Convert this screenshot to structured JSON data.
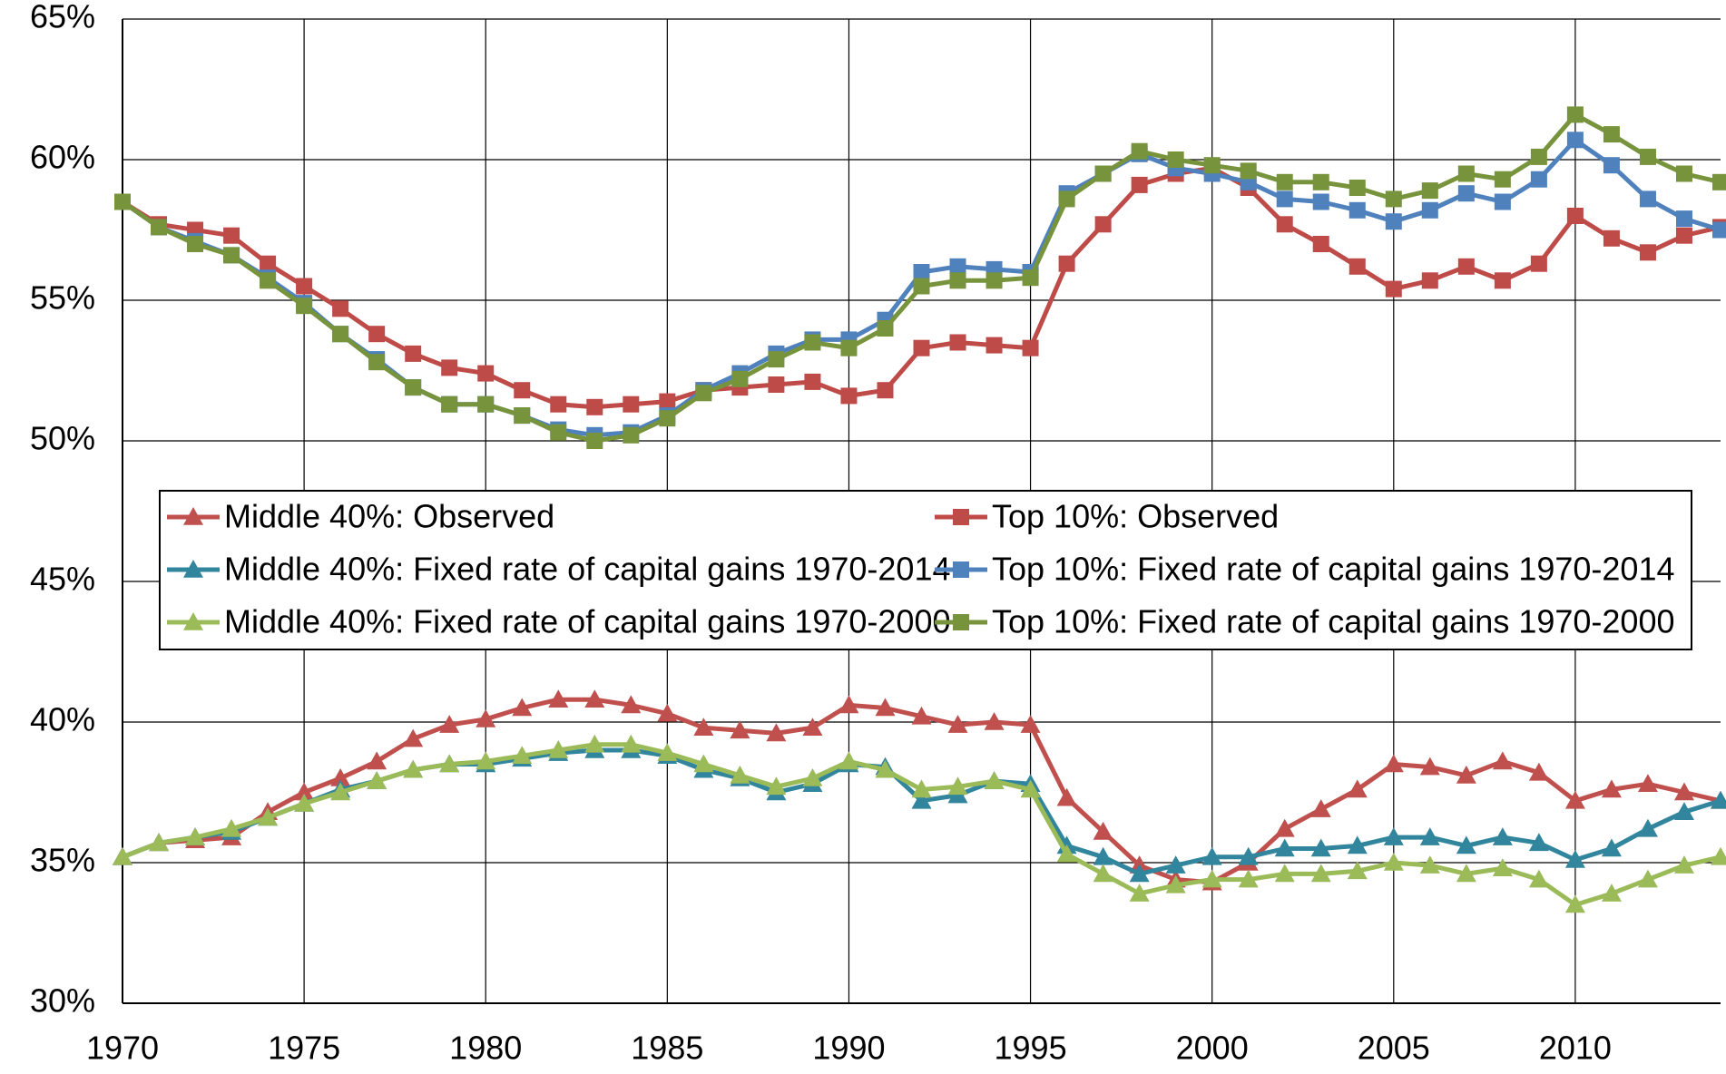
{
  "chart_data": {
    "type": "line",
    "x": [
      1970,
      1971,
      1972,
      1973,
      1974,
      1975,
      1976,
      1977,
      1978,
      1979,
      1980,
      1981,
      1982,
      1983,
      1984,
      1985,
      1986,
      1987,
      1988,
      1989,
      1990,
      1991,
      1992,
      1993,
      1994,
      1995,
      1996,
      1997,
      1998,
      1999,
      2000,
      2001,
      2002,
      2003,
      2004,
      2005,
      2006,
      2007,
      2008,
      2009,
      2010,
      2011,
      2012,
      2013,
      2014
    ],
    "xlim": [
      1970,
      2014
    ],
    "xticks": [
      1970,
      1975,
      1980,
      1985,
      1990,
      1995,
      2000,
      2005,
      2010
    ],
    "ylim": [
      30,
      65
    ],
    "yticks": [
      {
        "value": 30,
        "label": "30%"
      },
      {
        "value": 35,
        "label": "35%"
      },
      {
        "value": 40,
        "label": "40%"
      },
      {
        "value": 45,
        "label": "45%"
      },
      {
        "value": 50,
        "label": "50%"
      },
      {
        "value": 55,
        "label": "55%"
      },
      {
        "value": 60,
        "label": "60%"
      },
      {
        "value": 65,
        "label": "65%"
      }
    ],
    "grid": true,
    "series": [
      {
        "name": "Middle 40%: Observed",
        "color": "#c0504d",
        "marker": "triangle",
        "values": [
          35.2,
          35.7,
          35.8,
          35.9,
          36.8,
          37.5,
          38.0,
          38.6,
          39.4,
          39.9,
          40.1,
          40.5,
          40.8,
          40.8,
          40.6,
          40.3,
          39.8,
          39.7,
          39.6,
          39.8,
          40.6,
          40.5,
          40.2,
          39.9,
          40.0,
          39.9,
          37.3,
          36.1,
          34.9,
          34.4,
          34.3,
          35.0,
          36.2,
          36.9,
          37.6,
          38.5,
          38.4,
          38.1,
          38.6,
          38.2,
          37.2,
          37.6,
          37.8,
          37.5,
          37.2
        ]
      },
      {
        "name": "Top 10%: Observed",
        "color": "#be4b48",
        "marker": "square",
        "values": [
          58.5,
          57.7,
          57.5,
          57.3,
          56.3,
          55.5,
          54.7,
          53.8,
          53.1,
          52.6,
          52.4,
          51.8,
          51.3,
          51.2,
          51.3,
          51.4,
          51.8,
          51.9,
          52.0,
          52.1,
          51.6,
          51.8,
          53.3,
          53.5,
          53.4,
          53.3,
          56.3,
          57.7,
          59.1,
          59.5,
          59.7,
          59.0,
          57.7,
          57.0,
          56.2,
          55.4,
          55.7,
          56.2,
          55.7,
          56.3,
          58.0,
          57.2,
          56.7,
          57.3,
          57.6
        ]
      },
      {
        "name": "Middle 40%: Fixed rate of capital gains 1970-2014",
        "color": "#31859c",
        "marker": "triangle",
        "values": [
          35.2,
          35.7,
          35.9,
          36.1,
          36.6,
          37.1,
          37.6,
          37.9,
          38.3,
          38.5,
          38.5,
          38.7,
          38.9,
          39.0,
          39.0,
          38.8,
          38.3,
          38.0,
          37.5,
          37.8,
          38.5,
          38.4,
          37.2,
          37.4,
          37.9,
          37.8,
          35.6,
          35.2,
          34.6,
          34.9,
          35.2,
          35.2,
          35.5,
          35.5,
          35.6,
          35.9,
          35.9,
          35.6,
          35.9,
          35.7,
          35.1,
          35.5,
          36.2,
          36.8,
          37.2
        ]
      },
      {
        "name": "Top 10%: Fixed rate of capital gains 1970-2014",
        "color": "#4f81bd",
        "marker": "square",
        "values": [
          58.5,
          57.6,
          57.1,
          56.6,
          55.8,
          54.9,
          53.8,
          52.9,
          51.9,
          51.3,
          51.3,
          50.9,
          50.4,
          50.2,
          50.3,
          50.9,
          51.8,
          52.4,
          53.1,
          53.6,
          53.6,
          54.3,
          56.0,
          56.2,
          56.1,
          56.0,
          58.8,
          59.5,
          60.2,
          59.7,
          59.5,
          59.2,
          58.6,
          58.5,
          58.2,
          57.8,
          58.2,
          58.8,
          58.5,
          59.3,
          60.7,
          59.8,
          58.6,
          57.9,
          57.5
        ]
      },
      {
        "name": "Middle 40%: Fixed rate of capital gains 1970-2000",
        "color": "#9bbb59",
        "marker": "triangle",
        "values": [
          35.2,
          35.7,
          35.9,
          36.2,
          36.6,
          37.1,
          37.5,
          37.9,
          38.3,
          38.5,
          38.6,
          38.8,
          39.0,
          39.2,
          39.2,
          38.9,
          38.5,
          38.1,
          37.7,
          38.0,
          38.6,
          38.3,
          37.6,
          37.7,
          37.9,
          37.6,
          35.3,
          34.6,
          33.9,
          34.2,
          34.4,
          34.4,
          34.6,
          34.6,
          34.7,
          35.0,
          34.9,
          34.6,
          34.8,
          34.4,
          33.5,
          33.9,
          34.4,
          34.9,
          35.2
        ]
      },
      {
        "name": "Top 10%: Fixed rate of capital gains 1970-2000",
        "color": "#77933c",
        "marker": "square",
        "values": [
          58.5,
          57.6,
          57.0,
          56.6,
          55.7,
          54.8,
          53.8,
          52.8,
          51.9,
          51.3,
          51.3,
          50.9,
          50.3,
          50.0,
          50.2,
          50.8,
          51.7,
          52.2,
          52.9,
          53.5,
          53.3,
          54.0,
          55.5,
          55.7,
          55.7,
          55.8,
          58.6,
          59.5,
          60.3,
          60.0,
          59.8,
          59.6,
          59.2,
          59.2,
          59.0,
          58.6,
          58.9,
          59.5,
          59.3,
          60.1,
          61.6,
          60.9,
          60.1,
          59.5,
          59.2
        ]
      }
    ]
  }
}
